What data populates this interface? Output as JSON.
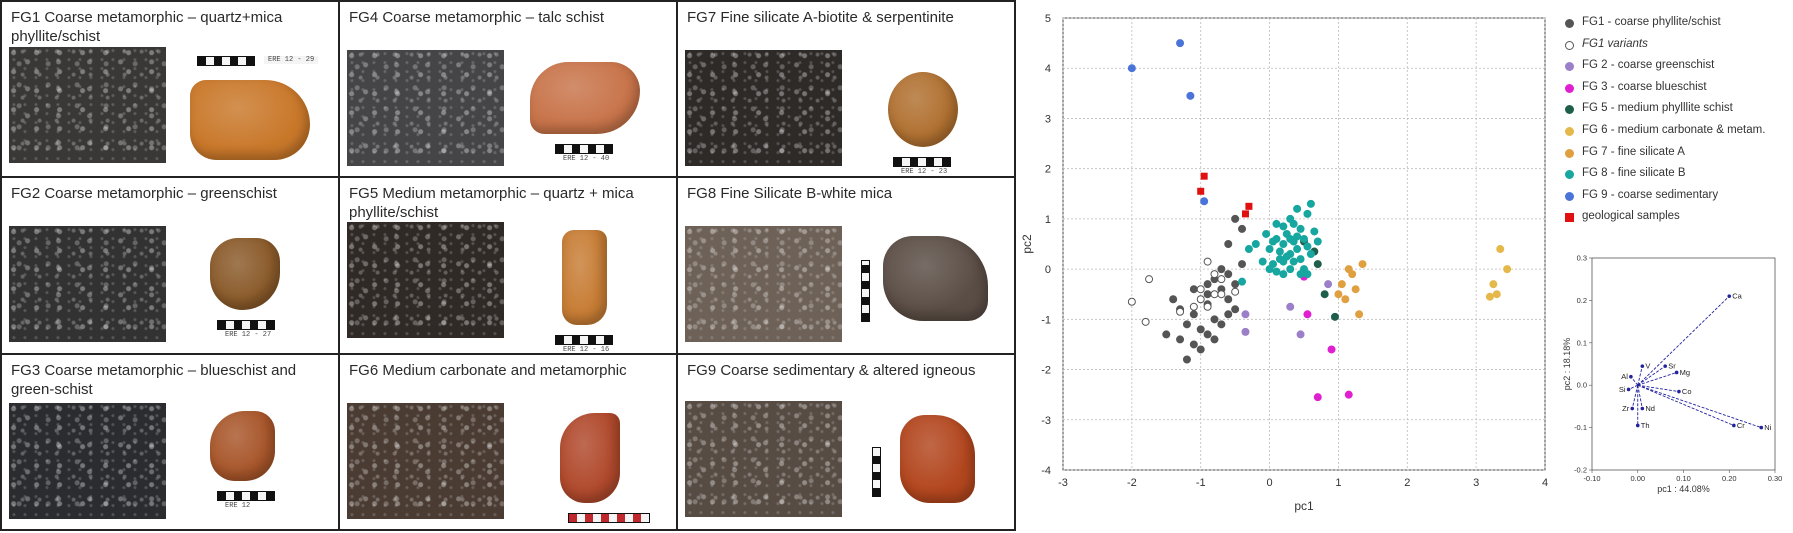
{
  "panels": [
    {
      "title": "FG1 Coarse metamorphic – quartz+mica phyllite/schist",
      "label": "ERE 12 - 29",
      "micro_color": "#3a3836",
      "sherd_color": "#c9782a"
    },
    {
      "title": "FG4 Coarse metamorphic – talc schist",
      "label": "ERE 12 - 40",
      "micro_color": "#454547",
      "sherd_color": "#c8744a"
    },
    {
      "title": "FG7 Fine silicate A-biotite & serpentinite",
      "label": "ERE 12 - 23",
      "micro_color": "#2d2a28",
      "sherd_color": "#b07030"
    },
    {
      "title": "FG2 Coarse metamorphic – greenschist",
      "label": "ERE 12 - 27",
      "micro_color": "#333233",
      "sherd_color": "#8a5a2a"
    },
    {
      "title": "FG5 Medium metamorphic – quartz + mica phyllite/schist",
      "label": "ERE 12 - 16",
      "micro_color": "#2f2a25",
      "sherd_color": "#c77d35"
    },
    {
      "title": "FG8 Fine Silicate B-white mica",
      "label": "",
      "micro_color": "#6e6258",
      "sherd_color": "#5a4d45"
    },
    {
      "title": "FG3 Coarse metamorphic – blueschist and green-schist",
      "label": "ERE 12",
      "micro_color": "#2b2c30",
      "sherd_color": "#a8562a"
    },
    {
      "title": "FG6 Medium carbonate and metamorphic",
      "label": "",
      "micro_color": "#4a3c33",
      "sherd_color": "#b0492c"
    },
    {
      "title": "FG9 Coarse sedimentary & altered igneous",
      "label": "",
      "micro_color": "#574c44",
      "sherd_color": "#b2461e"
    }
  ],
  "chart_data": [
    {
      "type": "scatter",
      "xlabel": "pc1",
      "ylabel": "pc2",
      "xlim": [
        -3,
        4
      ],
      "ylim": [
        -4,
        5
      ],
      "xticks": [
        -3,
        -2,
        -1,
        0,
        1,
        2,
        3,
        4
      ],
      "yticks": [
        -4,
        -3,
        -2,
        -1,
        0,
        1,
        2,
        3,
        4,
        5
      ],
      "grid": true,
      "legend_position": "right",
      "series": [
        {
          "name": "FG1 - coarse phyllite/schist",
          "color": "#555555",
          "marker": "circle",
          "filled": true,
          "points": [
            [
              -1.4,
              -0.6
            ],
            [
              -1.3,
              -0.8
            ],
            [
              -1.5,
              -1.3
            ],
            [
              -1.3,
              -1.4
            ],
            [
              -1.2,
              -1.1
            ],
            [
              -1.1,
              -1.5
            ],
            [
              -1.0,
              -1.2
            ],
            [
              -1.1,
              -0.9
            ],
            [
              -0.9,
              -0.7
            ],
            [
              -0.9,
              -0.5
            ],
            [
              -0.8,
              -0.2
            ],
            [
              -0.9,
              -0.3
            ],
            [
              -1.2,
              -1.8
            ],
            [
              -1.0,
              -1.6
            ],
            [
              -0.9,
              -1.3
            ],
            [
              -0.8,
              -1.0
            ],
            [
              -0.6,
              -0.9
            ],
            [
              -0.7,
              -1.1
            ],
            [
              -0.6,
              -0.6
            ],
            [
              -0.5,
              -0.3
            ],
            [
              -0.7,
              0.0
            ],
            [
              -0.4,
              0.1
            ],
            [
              -0.8,
              -1.4
            ],
            [
              -0.5,
              -0.8
            ],
            [
              -0.6,
              0.5
            ],
            [
              -0.5,
              1.0
            ],
            [
              -0.4,
              0.8
            ],
            [
              -0.6,
              -0.1
            ],
            [
              -1.1,
              -0.4
            ],
            [
              -0.7,
              -0.4
            ]
          ]
        },
        {
          "name": "FG1 variants",
          "color": "#555555",
          "marker": "circle",
          "filled": false,
          "points": [
            [
              -2.0,
              -0.65
            ],
            [
              -1.8,
              -1.05
            ],
            [
              -1.75,
              -0.2
            ],
            [
              -1.3,
              -0.85
            ],
            [
              -1.1,
              -0.75
            ],
            [
              -1.0,
              -0.4
            ],
            [
              -0.8,
              -0.5
            ],
            [
              -0.9,
              -0.75
            ],
            [
              -0.7,
              -0.2
            ],
            [
              -0.7,
              -0.5
            ],
            [
              -0.5,
              -0.45
            ],
            [
              -0.8,
              -0.1
            ],
            [
              -0.9,
              0.15
            ],
            [
              -1.0,
              -0.6
            ]
          ]
        },
        {
          "name": "FG 2 - coarse greenschist",
          "color": "#9b7fc8",
          "marker": "circle",
          "filled": true,
          "points": [
            [
              -0.35,
              -0.9
            ],
            [
              -0.35,
              -1.25
            ],
            [
              0.3,
              -0.75
            ],
            [
              0.45,
              -1.3
            ],
            [
              0.85,
              -0.3
            ]
          ]
        },
        {
          "name": "FG 3 - coarse blueschist",
          "color": "#e020d0",
          "marker": "circle",
          "filled": true,
          "points": [
            [
              0.5,
              -0.15
            ],
            [
              0.55,
              -0.9
            ],
            [
              0.9,
              -1.6
            ],
            [
              0.7,
              -2.55
            ],
            [
              1.15,
              -2.5
            ]
          ]
        },
        {
          "name": "FG 5 - medium phylllite schist",
          "color": "#1e5e4a",
          "marker": "circle",
          "filled": true,
          "points": [
            [
              0.65,
              0.35
            ],
            [
              0.8,
              -0.5
            ],
            [
              0.95,
              -0.95
            ],
            [
              0.5,
              0.55
            ],
            [
              0.7,
              0.1
            ]
          ]
        },
        {
          "name": "FG 6 - medium carbonate & metam.",
          "color": "#e5b84a",
          "marker": "circle",
          "filled": true,
          "points": [
            [
              3.2,
              -0.55
            ],
            [
              3.25,
              -0.3
            ],
            [
              3.35,
              0.4
            ],
            [
              3.45,
              0.0
            ],
            [
              3.3,
              -0.5
            ]
          ]
        },
        {
          "name": "FG 7 - fine silicate A",
          "color": "#e0a040",
          "marker": "circle",
          "filled": true,
          "points": [
            [
              1.05,
              -0.3
            ],
            [
              1.1,
              -0.6
            ],
            [
              1.2,
              -0.1
            ],
            [
              1.25,
              -0.4
            ],
            [
              1.3,
              -0.9
            ],
            [
              1.35,
              0.1
            ],
            [
              1.0,
              -0.5
            ],
            [
              1.15,
              0.0
            ]
          ]
        },
        {
          "name": "FG 8 - fine silicate B",
          "color": "#17a6a0",
          "marker": "circle",
          "filled": true,
          "points": [
            [
              0.0,
              0.4
            ],
            [
              0.1,
              0.6
            ],
            [
              0.2,
              0.5
            ],
            [
              0.3,
              0.3
            ],
            [
              0.15,
              0.2
            ],
            [
              0.05,
              0.1
            ],
            [
              0.25,
              0.7
            ],
            [
              0.35,
              0.9
            ],
            [
              0.45,
              0.8
            ],
            [
              0.55,
              1.1
            ],
            [
              0.4,
              1.2
            ],
            [
              0.6,
              1.3
            ],
            [
              0.3,
              0.0
            ],
            [
              0.2,
              -0.1
            ],
            [
              0.1,
              -0.05
            ],
            [
              0.0,
              0.0
            ],
            [
              0.4,
              0.4
            ],
            [
              0.5,
              0.6
            ],
            [
              0.35,
              0.15
            ],
            [
              0.45,
              0.2
            ],
            [
              0.55,
              0.45
            ],
            [
              0.2,
              0.85
            ],
            [
              0.1,
              0.9
            ],
            [
              0.3,
              1.0
            ],
            [
              0.5,
              0.0
            ],
            [
              0.6,
              0.3
            ],
            [
              -0.05,
              0.7
            ],
            [
              0.15,
              0.35
            ],
            [
              0.25,
              0.25
            ],
            [
              0.05,
              0.55
            ],
            [
              0.35,
              0.55
            ],
            [
              0.65,
              0.75
            ],
            [
              0.45,
              -0.1
            ],
            [
              -0.1,
              0.15
            ],
            [
              0.7,
              0.55
            ],
            [
              0.55,
              -0.1
            ],
            [
              -0.2,
              0.5
            ],
            [
              -0.3,
              0.4
            ],
            [
              -0.4,
              -0.25
            ],
            [
              0.3,
              0.6
            ],
            [
              0.4,
              0.65
            ],
            [
              0.2,
              0.15
            ]
          ]
        },
        {
          "name": "FG 9 - coarse sedimentary",
          "color": "#4a74d8",
          "marker": "circle",
          "filled": true,
          "points": [
            [
              -2.0,
              4.0
            ],
            [
              -1.3,
              4.5
            ],
            [
              -1.15,
              3.45
            ],
            [
              -0.95,
              1.35
            ]
          ]
        },
        {
          "name": "geological samples",
          "color": "#e01010",
          "marker": "square",
          "filled": true,
          "points": [
            [
              -0.95,
              1.85
            ],
            [
              -1.0,
              1.55
            ],
            [
              -0.3,
              1.25
            ],
            [
              -0.35,
              1.1
            ]
          ]
        }
      ]
    },
    {
      "type": "scatter",
      "subtype": "loadings biplot",
      "xlabel": "pc1 : 44.08%",
      "ylabel": "pc2 : 18.18%",
      "xlim": [
        -0.1,
        0.3
      ],
      "ylim": [
        -0.2,
        0.3
      ],
      "xticks": [
        "-0.10",
        "0.00",
        "0.10",
        "0.20",
        "0.30"
      ],
      "yticks": [
        "-0.2",
        "-0.1",
        "0.0",
        "0.1",
        "0.2",
        "0.3"
      ],
      "grid": false,
      "color": "#2222a0",
      "loadings": [
        {
          "label": "Ca",
          "x": 0.2,
          "y": 0.21
        },
        {
          "label": "Ni",
          "x": 0.27,
          "y": -0.1
        },
        {
          "label": "Cr",
          "x": 0.21,
          "y": -0.095
        },
        {
          "label": "Mg",
          "x": 0.085,
          "y": 0.03
        },
        {
          "label": "Sr",
          "x": 0.06,
          "y": 0.045
        },
        {
          "label": "Co",
          "x": 0.09,
          "y": -0.015
        },
        {
          "label": "V",
          "x": 0.01,
          "y": 0.045
        },
        {
          "label": "Al",
          "x": -0.015,
          "y": 0.02
        },
        {
          "label": "Si",
          "x": -0.02,
          "y": -0.01
        },
        {
          "label": "Zr",
          "x": -0.012,
          "y": -0.055
        },
        {
          "label": "Th",
          "x": 0.0,
          "y": -0.095
        },
        {
          "label": "Nd",
          "x": 0.01,
          "y": -0.055
        }
      ]
    }
  ]
}
